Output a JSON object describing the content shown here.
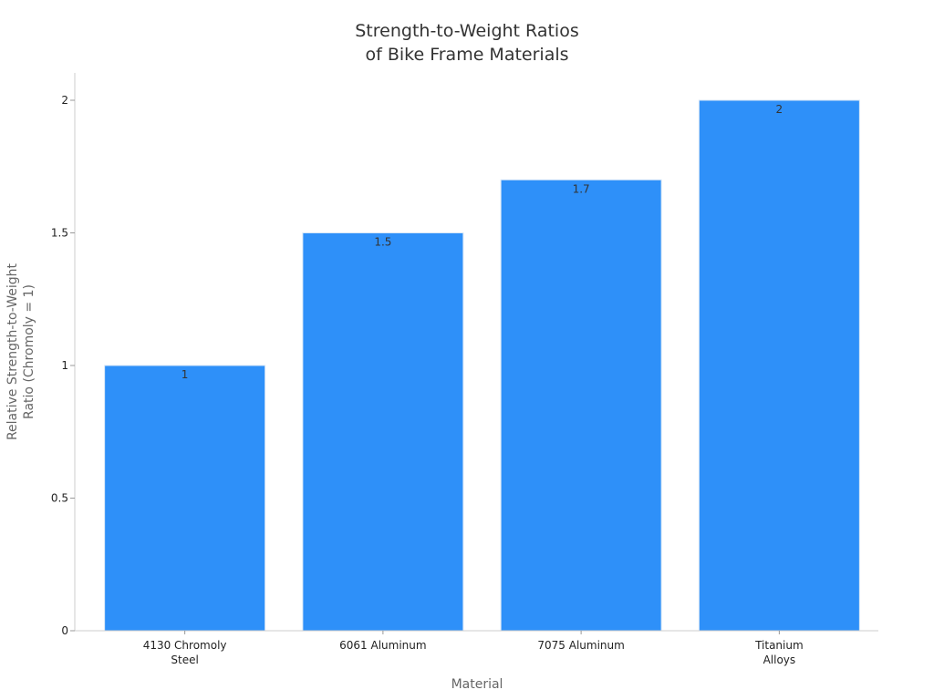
{
  "chart_data": {
    "type": "bar",
    "title": [
      "Strength-to-Weight Ratios",
      "of Bike Frame Materials"
    ],
    "xlabel": "Material",
    "ylabel": [
      "Relative Strength-to-Weight",
      "Ratio (Chromoly = 1)"
    ],
    "categories": [
      [
        "4130 Chromoly",
        "Steel"
      ],
      [
        "6061 Aluminum"
      ],
      [
        "7075 Aluminum"
      ],
      [
        "Titanium",
        "Alloys"
      ]
    ],
    "values": [
      1,
      1.5,
      1.7,
      2
    ],
    "data_labels": [
      "1",
      "1.5",
      "1.7",
      "2"
    ],
    "yticks": [
      0,
      0.5,
      1,
      1.5,
      2
    ],
    "ytick_labels": [
      "0",
      "0.5",
      "1",
      "1.5",
      "2"
    ],
    "ylim": [
      0,
      2.1
    ],
    "grid": false,
    "bar_color": "#2E90F9",
    "bar_edge_color": "#D6E6F7"
  }
}
